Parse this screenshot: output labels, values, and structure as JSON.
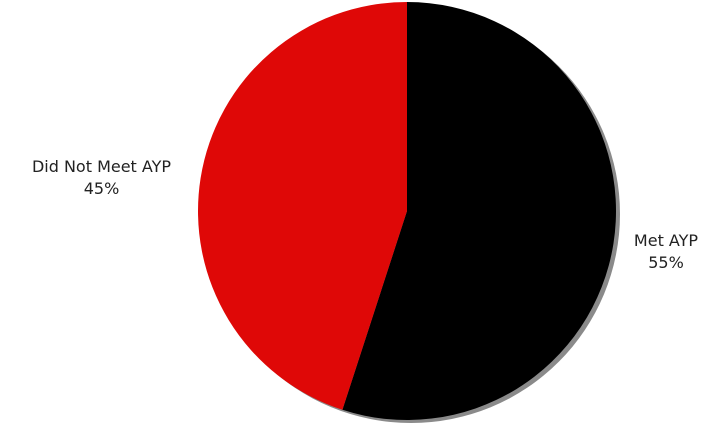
{
  "chart_data": {
    "type": "pie",
    "title": "",
    "slices": [
      {
        "label": "Met AYP",
        "value": 55,
        "display": "55%",
        "color": "#000000"
      },
      {
        "label": "Did Not Meet AYP",
        "value": 45,
        "display": "45%",
        "color": "#df0807"
      }
    ],
    "start_angle_deg": 0,
    "direction": "clockwise",
    "shadow": true,
    "legend": "none"
  }
}
